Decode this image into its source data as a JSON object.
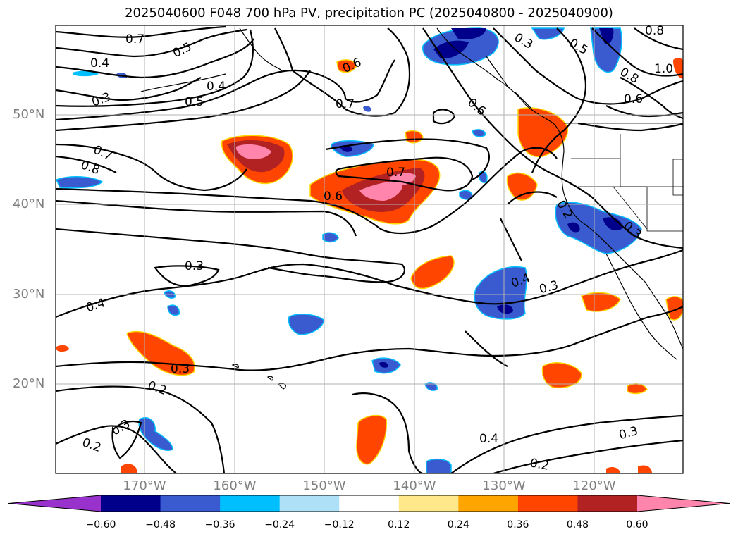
{
  "title": "2025040600 F048 700 hPa PV, precipitation PC (2025040800 - 2025040900)",
  "latitude_labels": [
    "50°N",
    "40°N",
    "30°N",
    "20°N"
  ],
  "longitude_labels": [
    "170°W",
    "160°W",
    "150°W",
    "140°W",
    "130°W",
    "120°W"
  ],
  "colorbar": {
    "ticks": [
      "−0.60",
      "−0.48",
      "−0.36",
      "−0.24",
      "−0.12",
      "0.12",
      "0.24",
      "0.36",
      "0.48",
      "0.60"
    ],
    "colors": [
      "#9932cc",
      "#00008b",
      "#3a5bcf",
      "#00bfff",
      "#aee0f8",
      "#ffffff",
      "#ffe88a",
      "#ffa500",
      "#ff4500",
      "#b22222",
      "#ff85ad"
    ]
  },
  "contour_labels": [
    "0.7",
    "0.5",
    "0.4",
    "0.4",
    "0.3",
    "0.5",
    "0.6",
    "0.7",
    "0.3",
    "0.5",
    "0.8",
    "0.8",
    "1.0",
    "0.6",
    "0.7",
    "0.8",
    "0.7",
    "0.6",
    "0.3",
    "0.4",
    "0.4",
    "0.3",
    "0.2",
    "0.3",
    "0.2",
    "0.3",
    "0.4",
    "0.2",
    "0.3",
    "0.3",
    "0.2",
    "0.6"
  ]
}
